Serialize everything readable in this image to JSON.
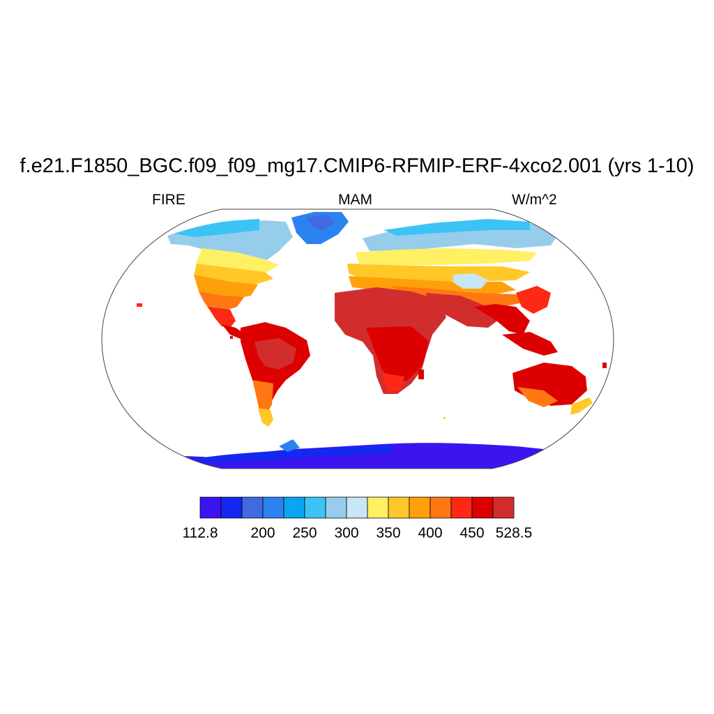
{
  "header": {
    "title": "f.e21.F1850_BGC.f09_f09_mg17.CMIP6-RFMIP-ERF-4xco2.001 (yrs 1-10)",
    "left_label": "FIRE",
    "center_label": "MAM",
    "right_label": "W/m^2"
  },
  "colorbar": {
    "colors": [
      "#3c14f0",
      "#1428f0",
      "#4169e1",
      "#2c82f0",
      "#0aa5f0",
      "#3cc3f5",
      "#96cdeb",
      "#c8e6f5",
      "#fff064",
      "#ffc828",
      "#ffa00a",
      "#ff7814",
      "#ff2814",
      "#dc0000",
      "#d22d2d"
    ],
    "labels": [
      {
        "text": "112.8",
        "index": 0
      },
      {
        "text": "200",
        "index": 3
      },
      {
        "text": "250",
        "index": 5
      },
      {
        "text": "300",
        "index": 7
      },
      {
        "text": "350",
        "index": 9
      },
      {
        "text": "400",
        "index": 11
      },
      {
        "text": "450",
        "index": 13
      },
      {
        "text": "528.5",
        "index": 15
      }
    ]
  },
  "map": {
    "projection": "Robinson",
    "variable": "FIRE"
  }
}
